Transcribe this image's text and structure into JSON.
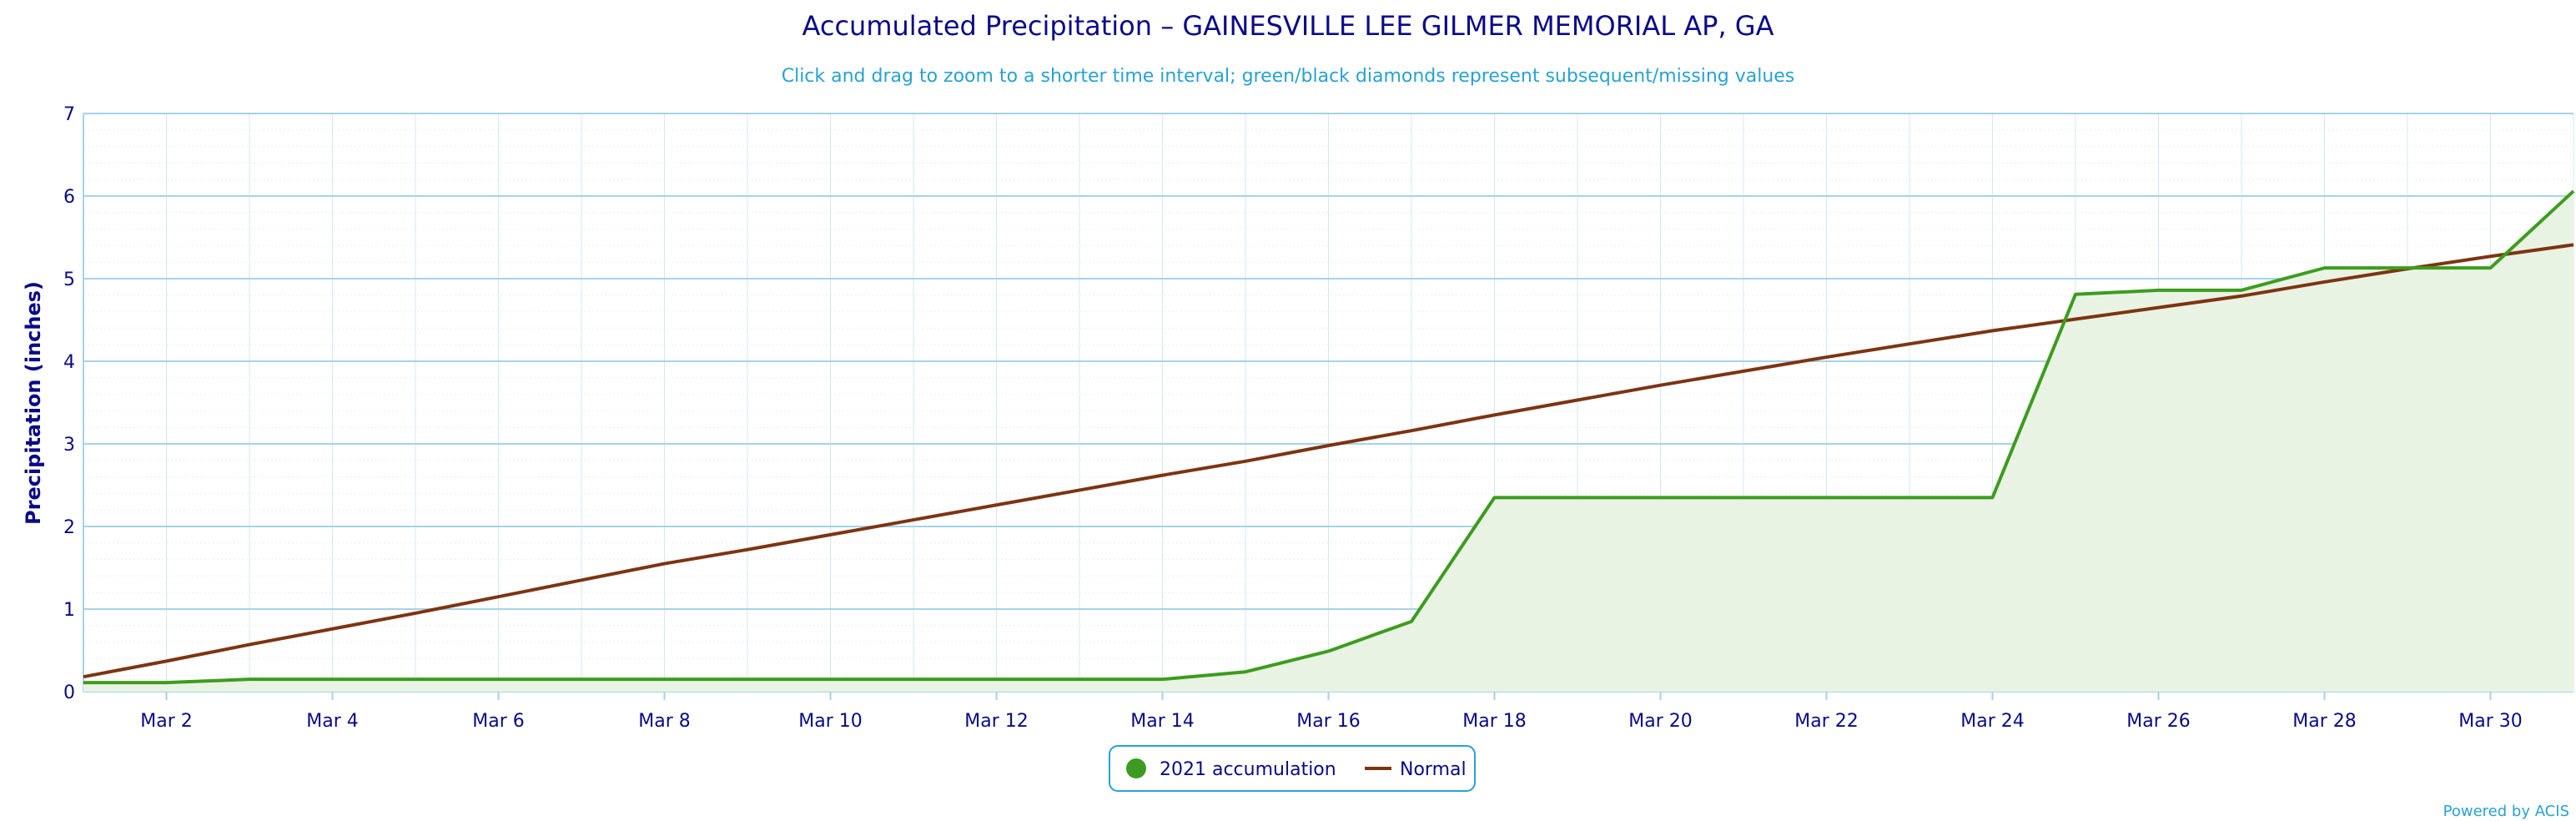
{
  "chart_data": {
    "type": "line",
    "title": "Accumulated Precipitation – GAINESVILLE LEE GILMER MEMORIAL AP, GA",
    "subtitle": "Click and drag to zoom to a shorter time interval; green/black diamonds represent subsequent/missing values",
    "xlabel": "",
    "ylabel": "Precipitation (inches)",
    "ylim": [
      0,
      7
    ],
    "yticks": [
      "0",
      "1",
      "2",
      "3",
      "4",
      "5",
      "6",
      "7"
    ],
    "xticks": [
      "Mar 2",
      "Mar 4",
      "Mar 6",
      "Mar 8",
      "Mar 10",
      "Mar 12",
      "Mar 14",
      "Mar 16",
      "Mar 18",
      "Mar 20",
      "Mar 22",
      "Mar 24",
      "Mar 26",
      "Mar 28",
      "Mar 30"
    ],
    "x": [
      "Mar 1",
      "Mar 2",
      "Mar 3",
      "Mar 4",
      "Mar 5",
      "Mar 6",
      "Mar 7",
      "Mar 8",
      "Mar 9",
      "Mar 10",
      "Mar 11",
      "Mar 12",
      "Mar 13",
      "Mar 14",
      "Mar 15",
      "Mar 16",
      "Mar 17",
      "Mar 18",
      "Mar 19",
      "Mar 20",
      "Mar 21",
      "Mar 22",
      "Mar 23",
      "Mar 24",
      "Mar 25",
      "Mar 26",
      "Mar 27",
      "Mar 28",
      "Mar 29",
      "Mar 30",
      "Mar 31"
    ],
    "grid": true,
    "legend_position": "bottom-center",
    "series": [
      {
        "name": "2021 accumulation",
        "color": "#3d9c1f",
        "fill": "#e9f3e3",
        "values": [
          0.11,
          0.11,
          0.15,
          0.15,
          0.15,
          0.15,
          0.15,
          0.15,
          0.15,
          0.15,
          0.15,
          0.15,
          0.15,
          0.15,
          0.24,
          0.49,
          0.85,
          2.35,
          2.35,
          2.35,
          2.35,
          2.35,
          2.35,
          2.35,
          4.81,
          4.86,
          4.86,
          5.13,
          5.13,
          5.13,
          6.06
        ]
      },
      {
        "name": "Normal",
        "color": "#7d3412",
        "values": [
          0.18,
          0.37,
          0.57,
          0.76,
          0.95,
          1.15,
          1.35,
          1.55,
          1.72,
          1.9,
          2.08,
          2.26,
          2.44,
          2.62,
          2.79,
          2.98,
          3.16,
          3.35,
          3.53,
          3.71,
          3.88,
          4.05,
          4.21,
          4.37,
          4.51,
          4.65,
          4.79,
          4.96,
          5.12,
          5.27,
          5.41
        ]
      }
    ]
  },
  "credit": "Powered by ACIS"
}
